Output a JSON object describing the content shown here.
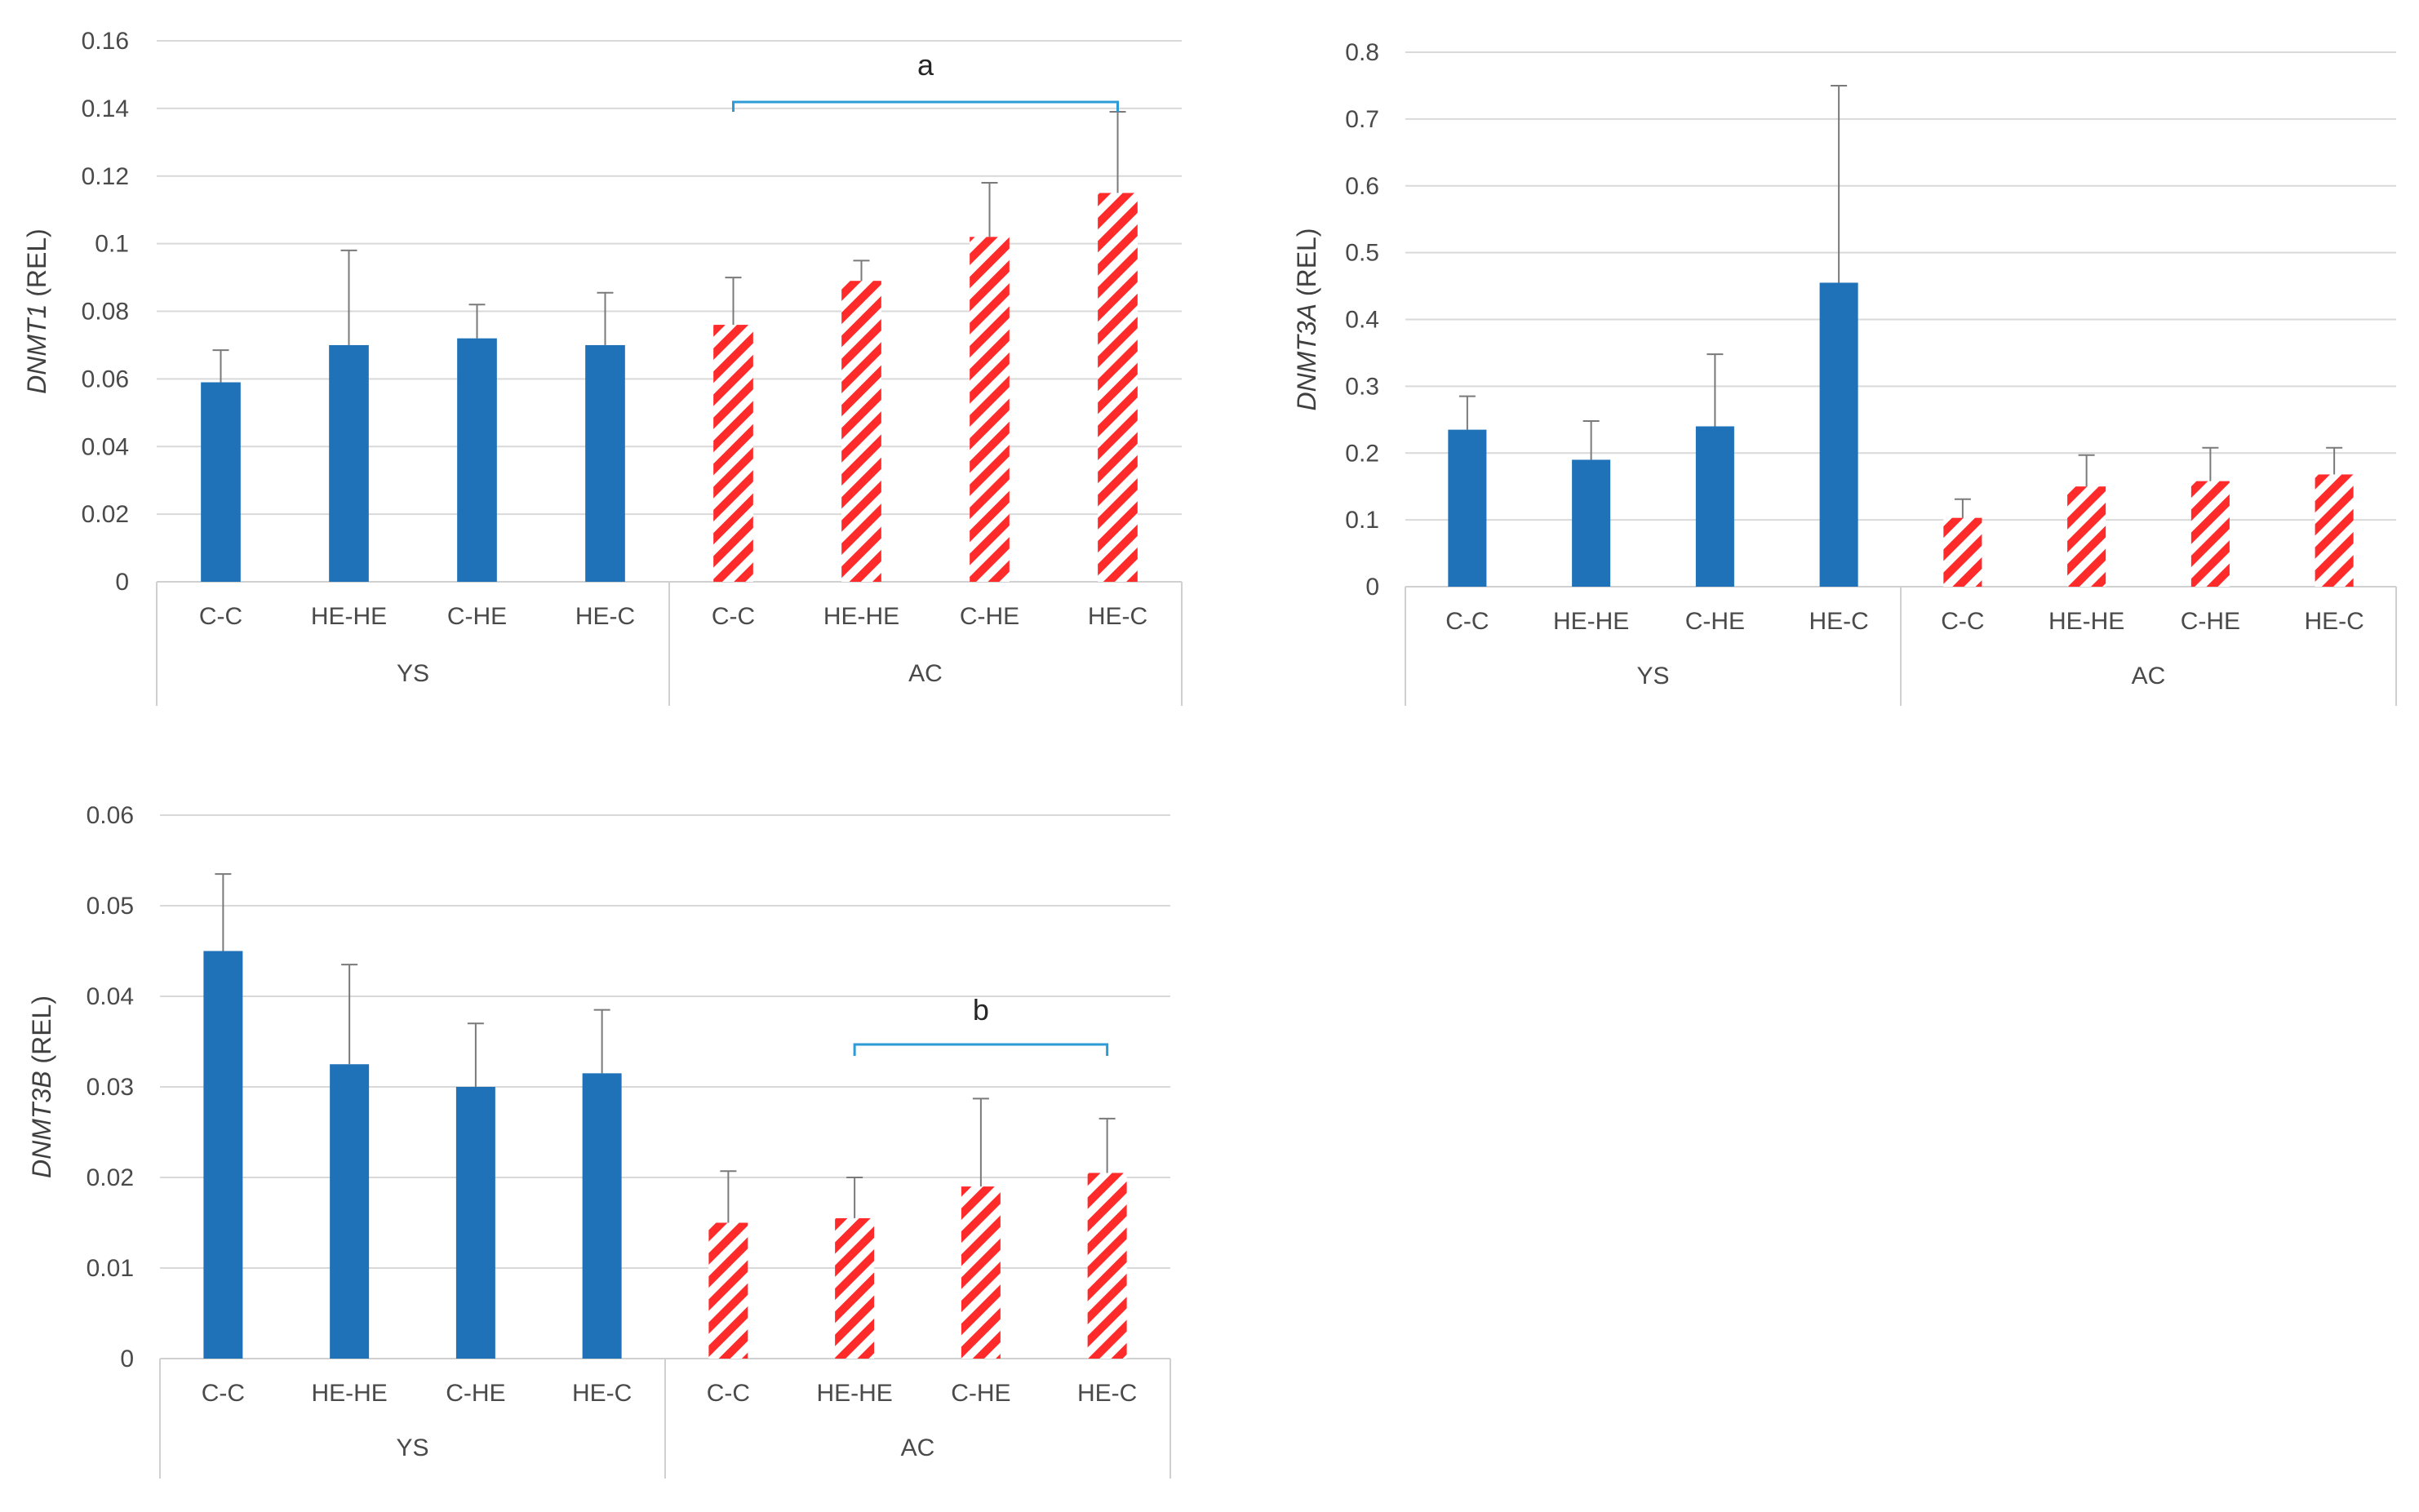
{
  "chart_data": [
    {
      "type": "bar",
      "ylabel_gene": "DNMT1",
      "ylabel_unit": " (REL)",
      "ylim": [
        0,
        0.16
      ],
      "yticks": [
        0,
        0.02,
        0.04,
        0.06,
        0.08,
        0.1,
        0.12,
        0.14,
        0.16
      ],
      "ytick_labels": [
        "0",
        "0.02",
        "0.04",
        "0.06",
        "0.08",
        "0.1",
        "0.12",
        "0.14",
        "0.16"
      ],
      "groups": [
        "YS",
        "AC"
      ],
      "categories": [
        "C-C",
        "HE-HE",
        "C-HE",
        "HE-C"
      ],
      "series": [
        {
          "name": "YS",
          "style": "solid",
          "color": "#1f72b8",
          "values": [
            0.059,
            0.07,
            0.072,
            0.07
          ],
          "errors": [
            0.0095,
            0.028,
            0.01,
            0.0155
          ]
        },
        {
          "name": "AC",
          "style": "hatched",
          "color": "#ff2a2a",
          "values": [
            0.076,
            0.089,
            0.102,
            0.115
          ],
          "errors": [
            0.014,
            0.006,
            0.016,
            0.024
          ]
        }
      ],
      "annotation": {
        "label": "a",
        "from": "AC C-C",
        "to": "AC HE-C"
      }
    },
    {
      "type": "bar",
      "ylabel_gene": "DNMT3A",
      "ylabel_unit": " (REL)",
      "ylim": [
        0,
        0.8
      ],
      "yticks": [
        0,
        0.1,
        0.2,
        0.3,
        0.4,
        0.5,
        0.6,
        0.7,
        0.8
      ],
      "ytick_labels": [
        "0",
        "0.1",
        "0.2",
        "0.3",
        "0.4",
        "0.5",
        "0.6",
        "0.7",
        "0.8"
      ],
      "groups": [
        "YS",
        "AC"
      ],
      "categories": [
        "C-C",
        "HE-HE",
        "C-HE",
        "HE-C"
      ],
      "series": [
        {
          "name": "YS",
          "style": "solid",
          "color": "#1f72b8",
          "values": [
            0.235,
            0.19,
            0.24,
            0.455
          ],
          "errors": [
            0.05,
            0.058,
            0.108,
            0.295
          ]
        },
        {
          "name": "AC",
          "style": "hatched",
          "color": "#ff2a2a",
          "values": [
            0.103,
            0.15,
            0.158,
            0.168
          ],
          "errors": [
            0.028,
            0.047,
            0.05,
            0.04
          ]
        }
      ]
    },
    {
      "type": "bar",
      "ylabel_gene": "DNMT3B",
      "ylabel_unit": " (REL)",
      "ylim": [
        0,
        0.06
      ],
      "yticks": [
        0,
        0.01,
        0.02,
        0.03,
        0.04,
        0.05,
        0.06
      ],
      "ytick_labels": [
        "0",
        "0.01",
        "0.02",
        "0.03",
        "0.04",
        "0.05",
        "0.06"
      ],
      "groups": [
        "YS",
        "AC"
      ],
      "categories": [
        "C-C",
        "HE-HE",
        "C-HE",
        "HE-C"
      ],
      "series": [
        {
          "name": "YS",
          "style": "solid",
          "color": "#1f72b8",
          "values": [
            0.045,
            0.0325,
            0.03,
            0.0315
          ],
          "errors": [
            0.0085,
            0.011,
            0.007,
            0.007
          ]
        },
        {
          "name": "AC",
          "style": "hatched",
          "color": "#ff2a2a",
          "values": [
            0.015,
            0.0155,
            0.019,
            0.0205
          ],
          "errors": [
            0.0057,
            0.0045,
            0.0097,
            0.006
          ]
        }
      ],
      "annotation": {
        "label": "b",
        "from": "AC HE-HE",
        "to": "AC HE-C"
      }
    }
  ]
}
